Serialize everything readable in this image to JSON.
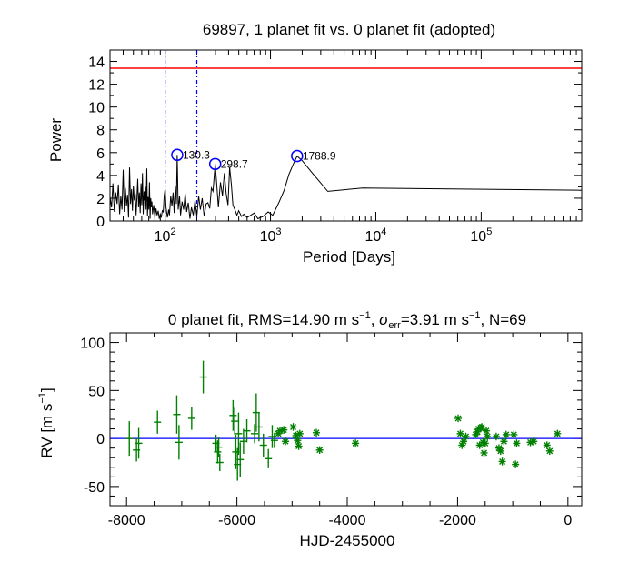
{
  "chart_data": [
    {
      "type": "line",
      "title": "69897,  1 planet fit vs. 0 planet fit (adopted)",
      "xlabel": "Period [Days]",
      "ylabel": "Power",
      "xscale": "log",
      "xlim": [
        30,
        900000
      ],
      "ylim": [
        0,
        15
      ],
      "x_ticks": [
        {
          "value": 100,
          "base": "10",
          "exp": "2"
        },
        {
          "value": 1000,
          "base": "10",
          "exp": "3"
        },
        {
          "value": 10000,
          "base": "10",
          "exp": "4"
        },
        {
          "value": 100000,
          "base": "10",
          "exp": "5"
        }
      ],
      "y_ticks": [
        "0",
        "2",
        "4",
        "6",
        "8",
        "10",
        "12",
        "14"
      ],
      "threshold_line": {
        "y": 13.4,
        "color": "#ff0000"
      },
      "vertical_dashed_lines": {
        "x": [
          100,
          200
        ],
        "color": "#0000ff"
      },
      "series_color": "#000000",
      "periodogram": [
        [
          30,
          2.1
        ],
        [
          31,
          1.2
        ],
        [
          32,
          3.3
        ],
        [
          33,
          0.8
        ],
        [
          34,
          2.5
        ],
        [
          35,
          1.5
        ],
        [
          36,
          3.2
        ],
        [
          37,
          0.6
        ],
        [
          38,
          2.2
        ],
        [
          39,
          1.0
        ],
        [
          40,
          4.5
        ],
        [
          41,
          0.8
        ],
        [
          42,
          2.9
        ],
        [
          43,
          1.3
        ],
        [
          44,
          2.3
        ],
        [
          45,
          0.3
        ],
        [
          46,
          4.7
        ],
        [
          47,
          1.5
        ],
        [
          48,
          2.8
        ],
        [
          49,
          0.9
        ],
        [
          50,
          3.1
        ],
        [
          51,
          1.8
        ],
        [
          52,
          2.4
        ],
        [
          53,
          0.5
        ],
        [
          54,
          2.0
        ],
        [
          55,
          3.7
        ],
        [
          56,
          1.2
        ],
        [
          57,
          2.5
        ],
        [
          58,
          0.7
        ],
        [
          59,
          3.3
        ],
        [
          60,
          1.4
        ],
        [
          61,
          4.2
        ],
        [
          62,
          0.6
        ],
        [
          63,
          2.6
        ],
        [
          64,
          1.8
        ],
        [
          65,
          3.0
        ],
        [
          66,
          1.0
        ],
        [
          67,
          4.6
        ],
        [
          68,
          0.4
        ],
        [
          69,
          2.1
        ],
        [
          70,
          1.0
        ],
        [
          71,
          3.4
        ],
        [
          72,
          0.2
        ],
        [
          73,
          2.0
        ],
        [
          74,
          1.2
        ],
        [
          75,
          1.7
        ],
        [
          76,
          0.6
        ],
        [
          78,
          1.4
        ],
        [
          80,
          0.3
        ],
        [
          82,
          1.1
        ],
        [
          84,
          0.5
        ],
        [
          86,
          0.9
        ],
        [
          88,
          0.2
        ],
        [
          90,
          0.6
        ],
        [
          92,
          0.3
        ],
        [
          94,
          0.9
        ],
        [
          96,
          0.8
        ],
        [
          98,
          2.2
        ],
        [
          100,
          2.8
        ],
        [
          102,
          1.2
        ],
        [
          105,
          0.3
        ],
        [
          108,
          1.0
        ],
        [
          110,
          0.5
        ],
        [
          113,
          2.2
        ],
        [
          116,
          1.3
        ],
        [
          119,
          2.5
        ],
        [
          122,
          0.7
        ],
        [
          125,
          3.1
        ],
        [
          128,
          1.5
        ],
        [
          130.3,
          5.8
        ],
        [
          133,
          1.0
        ],
        [
          137,
          2.2
        ],
        [
          140,
          0.5
        ],
        [
          145,
          1.7
        ],
        [
          150,
          1.0
        ],
        [
          155,
          2.4
        ],
        [
          160,
          0.8
        ],
        [
          166,
          1.6
        ],
        [
          172,
          0.2
        ],
        [
          178,
          1.2
        ],
        [
          185,
          0.5
        ],
        [
          192,
          1.8
        ],
        [
          200,
          0.4
        ],
        [
          208,
          2.2
        ],
        [
          216,
          1.0
        ],
        [
          225,
          2.0
        ],
        [
          235,
          0.4
        ],
        [
          245,
          1.5
        ],
        [
          255,
          1.6
        ],
        [
          265,
          1.1
        ],
        [
          275,
          2.9
        ],
        [
          285,
          2.6
        ],
        [
          298.7,
          5.0
        ],
        [
          310,
          3.0
        ],
        [
          320,
          1.2
        ],
        [
          335,
          3.4
        ],
        [
          350,
          2.2
        ],
        [
          365,
          4.2
        ],
        [
          380,
          2.4
        ],
        [
          395,
          1.4
        ],
        [
          410,
          4.7
        ],
        [
          425,
          3.2
        ],
        [
          440,
          1.4
        ],
        [
          460,
          1.0
        ],
        [
          480,
          0.5
        ],
        [
          500,
          0.9
        ],
        [
          530,
          0.4
        ],
        [
          560,
          0.6
        ],
        [
          600,
          0.3
        ],
        [
          650,
          0.5
        ],
        [
          700,
          0.7
        ],
        [
          760,
          0.2
        ],
        [
          850,
          0.4
        ],
        [
          950,
          0.8
        ],
        [
          1050,
          0.5
        ],
        [
          1200,
          1.6
        ],
        [
          1350,
          2.7
        ],
        [
          1500,
          4.1
        ],
        [
          1650,
          5.0
        ],
        [
          1788.9,
          5.7
        ],
        [
          2000,
          5.3
        ],
        [
          2500,
          4.2
        ],
        [
          3500,
          2.6
        ],
        [
          7500,
          2.9
        ],
        [
          900000,
          2.7
        ]
      ],
      "peaks": [
        {
          "x": 130.3,
          "y": 5.8,
          "label": "130.3"
        },
        {
          "x": 298.7,
          "y": 5.0,
          "label": "298.7"
        },
        {
          "x": 1788.9,
          "y": 5.7,
          "label": "1788.9"
        }
      ]
    },
    {
      "type": "scatter",
      "title_parts": {
        "a": "0 planet fit, RMS=14.90 m s",
        "sup1": "−1",
        "b": ", ",
        "sigma": "σ",
        "sub": "err",
        "c": "=3.91 m s",
        "sup2": "−1",
        "d": ", N=69"
      },
      "xlabel": "HJD-2455000",
      "ylabel_parts": {
        "a": "RV  [m s",
        "sup": "−1",
        "b": "]"
      },
      "xlim": [
        -8300,
        250
      ],
      "ylim": [
        -70,
        110
      ],
      "x_ticks": [
        "-8000",
        "-6000",
        "-4000",
        "-2000",
        "0"
      ],
      "y_ticks": [
        "-50",
        "0",
        "50",
        "100"
      ],
      "fit_line": {
        "y": 0,
        "color": "#0000ff"
      },
      "point_color": "#008000",
      "points": [
        {
          "x": -7950,
          "y": 0,
          "e": 18
        },
        {
          "x": -7820,
          "y": -12,
          "e": 12
        },
        {
          "x": -7780,
          "y": -5,
          "e": 16
        },
        {
          "x": -7440,
          "y": 17,
          "e": 12
        },
        {
          "x": -7090,
          "y": 25,
          "e": 20
        },
        {
          "x": -7050,
          "y": -4,
          "e": 18
        },
        {
          "x": -6820,
          "y": 21,
          "e": 12
        },
        {
          "x": -6610,
          "y": 64,
          "e": 17
        },
        {
          "x": -6380,
          "y": -5,
          "e": 9
        },
        {
          "x": -6350,
          "y": -14,
          "e": 12
        },
        {
          "x": -6330,
          "y": -9,
          "e": 10
        },
        {
          "x": -6310,
          "y": -25,
          "e": 9
        },
        {
          "x": -6070,
          "y": 24,
          "e": 16
        },
        {
          "x": -6040,
          "y": 18,
          "e": 14
        },
        {
          "x": -6020,
          "y": -14,
          "e": 18
        },
        {
          "x": -5990,
          "y": -27,
          "e": 17
        },
        {
          "x": -5970,
          "y": 5,
          "e": 22
        },
        {
          "x": -5940,
          "y": -22,
          "e": 18
        },
        {
          "x": -5880,
          "y": -3,
          "e": 13
        },
        {
          "x": -5820,
          "y": 8,
          "e": 12
        },
        {
          "x": -5680,
          "y": 5,
          "e": 10
        },
        {
          "x": -5650,
          "y": 27,
          "e": 20
        },
        {
          "x": -5600,
          "y": 12,
          "e": 15
        },
        {
          "x": -5520,
          "y": -7,
          "e": 12
        },
        {
          "x": -5430,
          "y": -21,
          "e": 10
        },
        {
          "x": -5360,
          "y": 2,
          "e": 12
        },
        {
          "x": -5320,
          "y": -2,
          "e": 8
        },
        {
          "x": -5250,
          "y": 5,
          "e": 4
        },
        {
          "x": -5220,
          "y": 8,
          "e": 4
        },
        {
          "x": -5150,
          "y": 9,
          "e": 4
        },
        {
          "x": -5120,
          "y": -3,
          "e": 4
        },
        {
          "x": -4980,
          "y": 12,
          "e": 4
        },
        {
          "x": -4930,
          "y": 3,
          "e": 4
        },
        {
          "x": -4900,
          "y": -2,
          "e": 4
        },
        {
          "x": -4880,
          "y": -8,
          "e": 4
        },
        {
          "x": -4860,
          "y": 5,
          "e": 4
        },
        {
          "x": -4560,
          "y": 6,
          "e": 4
        },
        {
          "x": -4500,
          "y": -12,
          "e": 4
        },
        {
          "x": -3850,
          "y": -5,
          "e": 4
        },
        {
          "x": -1990,
          "y": 21,
          "e": 4
        },
        {
          "x": -1950,
          "y": 5,
          "e": 4
        },
        {
          "x": -1920,
          "y": -7,
          "e": 4
        },
        {
          "x": -1890,
          "y": -3,
          "e": 4
        },
        {
          "x": -1850,
          "y": 2,
          "e": 4
        },
        {
          "x": -1670,
          "y": 4,
          "e": 4
        },
        {
          "x": -1640,
          "y": 7,
          "e": 4
        },
        {
          "x": -1620,
          "y": 10,
          "e": 4
        },
        {
          "x": -1600,
          "y": -7,
          "e": 4
        },
        {
          "x": -1580,
          "y": 11,
          "e": 4
        },
        {
          "x": -1560,
          "y": 12,
          "e": 4
        },
        {
          "x": -1540,
          "y": -4,
          "e": 4
        },
        {
          "x": -1520,
          "y": -15,
          "e": 4
        },
        {
          "x": -1500,
          "y": -5,
          "e": 4
        },
        {
          "x": -1480,
          "y": 8,
          "e": 4
        },
        {
          "x": -1460,
          "y": 2,
          "e": 4
        },
        {
          "x": -1300,
          "y": 2,
          "e": 4
        },
        {
          "x": -1250,
          "y": -10,
          "e": 4
        },
        {
          "x": -1220,
          "y": -13,
          "e": 4
        },
        {
          "x": -1190,
          "y": -24,
          "e": 4
        },
        {
          "x": -1160,
          "y": -3,
          "e": 4
        },
        {
          "x": -1120,
          "y": 4,
          "e": 4
        },
        {
          "x": -980,
          "y": 4,
          "e": 4
        },
        {
          "x": -950,
          "y": -27,
          "e": 4
        },
        {
          "x": -930,
          "y": -5,
          "e": 4
        },
        {
          "x": -680,
          "y": -4,
          "e": 4
        },
        {
          "x": -620,
          "y": -3,
          "e": 4
        },
        {
          "x": -380,
          "y": -7,
          "e": 4
        },
        {
          "x": -330,
          "y": -13,
          "e": 4
        },
        {
          "x": -190,
          "y": 5,
          "e": 4
        }
      ]
    }
  ]
}
